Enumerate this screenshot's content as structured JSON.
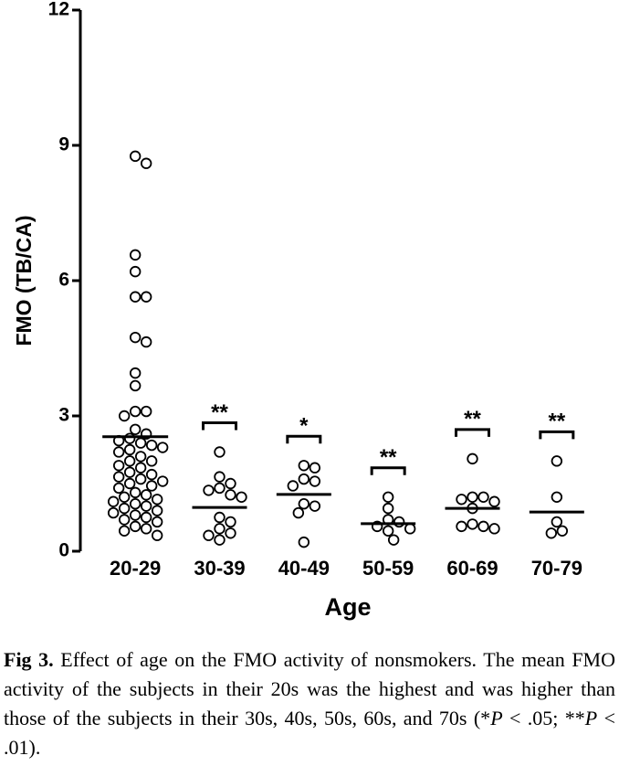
{
  "chart_data": {
    "type": "strip",
    "ylabel": "FMO (TB/CA)",
    "xlabel": "Age",
    "categories": [
      "20-29",
      "30-39",
      "40-49",
      "50-59",
      "60-69",
      "70-79"
    ],
    "values": [
      [
        8.76,
        8.6,
        6.57,
        6.2,
        5.64,
        5.64,
        4.74,
        4.64,
        3.95,
        3.67,
        3.1,
        3.1,
        3.0,
        2.7,
        2.6,
        2.5,
        2.45,
        2.4,
        2.35,
        2.3,
        2.25,
        2.2,
        2.1,
        2.0,
        2.0,
        1.9,
        1.85,
        1.75,
        1.7,
        1.65,
        1.6,
        1.55,
        1.5,
        1.45,
        1.4,
        1.3,
        1.25,
        1.2,
        1.15,
        1.1,
        1.05,
        1.0,
        0.95,
        0.9,
        0.85,
        0.8,
        0.75,
        0.7,
        0.65,
        0.55,
        0.5,
        0.45,
        0.35
      ],
      [
        2.2,
        1.65,
        1.5,
        1.4,
        1.35,
        1.25,
        1.2,
        0.75,
        0.65,
        0.5,
        0.4,
        0.35,
        0.25
      ],
      [
        1.9,
        1.85,
        1.6,
        1.55,
        1.45,
        1.05,
        1.0,
        0.85,
        0.2
      ],
      [
        1.2,
        0.95,
        0.7,
        0.65,
        0.55,
        0.5,
        0.45,
        0.25
      ],
      [
        2.05,
        1.2,
        1.2,
        1.15,
        1.1,
        0.95,
        0.6,
        0.55,
        0.55,
        0.5
      ],
      [
        2.0,
        1.2,
        0.65,
        0.45,
        0.4
      ]
    ],
    "means": [
      2.54,
      0.97,
      1.26,
      0.61,
      0.95,
      0.87
    ],
    "annotations": [
      {
        "category": "30-39",
        "text": "**"
      },
      {
        "category": "40-49",
        "text": "*"
      },
      {
        "category": "50-59",
        "text": "**"
      },
      {
        "category": "60-69",
        "text": "**"
      },
      {
        "category": "70-79",
        "text": "**"
      }
    ],
    "color": "#000000",
    "ylim": [
      0,
      12
    ],
    "yticks": [
      0,
      3,
      6,
      9,
      12
    ]
  },
  "caption": {
    "label": "Fig 3.",
    "runs": [
      {
        "text": " Effect of age on the FMO activity of nonsmokers. The mean FMO activity of the subjects in their 20s was the highest and was higher than those of the subjects in their 30s, 40s, 50s, 60s, and 70s (*",
        "italic": false
      },
      {
        "text": "P",
        "italic": true
      },
      {
        "text": " < .05; **",
        "italic": false
      },
      {
        "text": "P",
        "italic": true
      },
      {
        "text": " < .01).",
        "italic": false
      }
    ]
  }
}
